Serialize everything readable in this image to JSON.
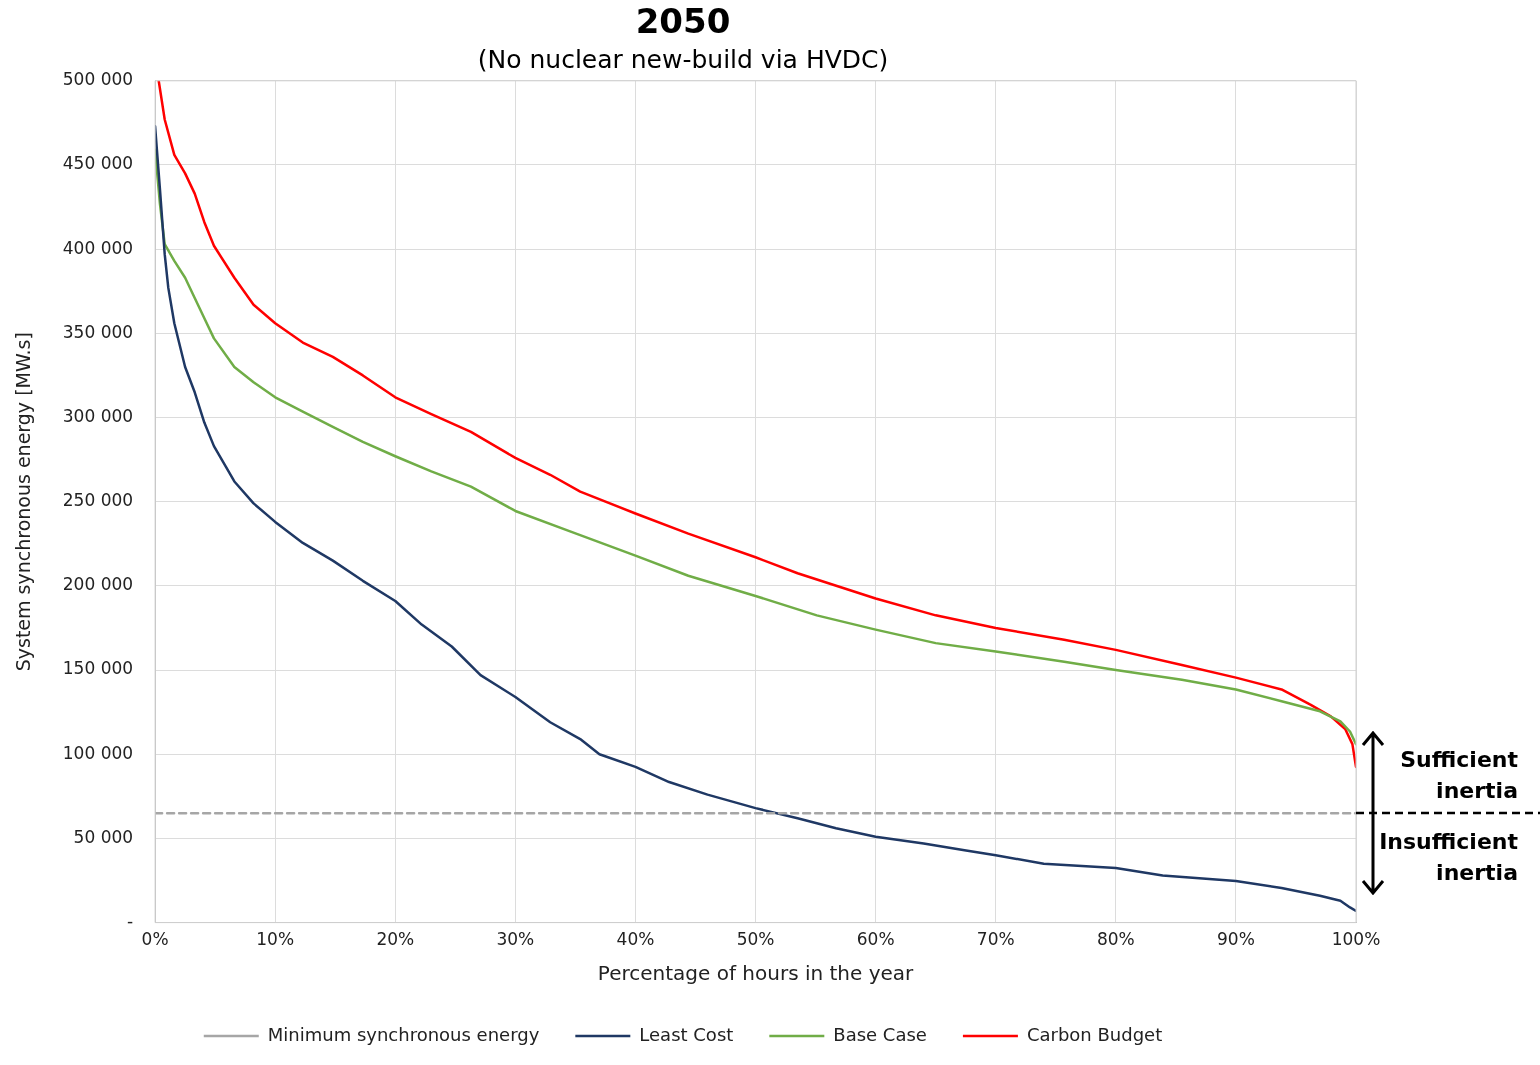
{
  "chart_data": {
    "type": "line",
    "title": "2050",
    "subtitle": "(No nuclear new-build via HVDC)",
    "xlabel": "Percentage of hours in the year",
    "ylabel": "System synchronous energy [MW.s]",
    "xlim": [
      0,
      100
    ],
    "xticks": [
      {
        "value": 0,
        "label": "0%"
      },
      {
        "value": 10,
        "label": "10%"
      },
      {
        "value": 20,
        "label": "20%"
      },
      {
        "value": 30,
        "label": "30%"
      },
      {
        "value": 40,
        "label": "40%"
      },
      {
        "value": 50,
        "label": "50%"
      },
      {
        "value": 60,
        "label": "60%"
      },
      {
        "value": 70,
        "label": "70%"
      },
      {
        "value": 80,
        "label": "80%"
      },
      {
        "value": 90,
        "label": "90%"
      },
      {
        "value": 100,
        "label": "100%"
      }
    ],
    "ylim": [
      0,
      500000
    ],
    "yticks": [
      {
        "value": 0,
        "label": "-"
      },
      {
        "value": 50000,
        "label": "50 000"
      },
      {
        "value": 100000,
        "label": "100 000"
      },
      {
        "value": 150000,
        "label": "150 000"
      },
      {
        "value": 200000,
        "label": "200 000"
      },
      {
        "value": 250000,
        "label": "250 000"
      },
      {
        "value": 300000,
        "label": "300 000"
      },
      {
        "value": 350000,
        "label": "350 000"
      },
      {
        "value": 400000,
        "label": "400 000"
      },
      {
        "value": 450000,
        "label": "450 000"
      },
      {
        "value": 500000,
        "label": "500 000"
      }
    ],
    "grid": true,
    "legend": "bottom",
    "marker": "none",
    "series": [
      {
        "name": "Minimum synchronous energy",
        "color": "#a6a6a6",
        "line_style": "dashed",
        "x": [
          0,
          100
        ],
        "values": [
          65000,
          65000
        ]
      },
      {
        "name": "Least Cost",
        "color": "#1f3864",
        "line_style": "solid",
        "x": [
          0,
          0.4,
          0.8,
          1.1,
          1.6,
          2.5,
          3.3,
          4.1,
          4.9,
          6.6,
          8.2,
          10,
          12.3,
          14.8,
          17.3,
          20,
          22.2,
          24.7,
          27.1,
          30,
          32.9,
          35.4,
          37,
          40,
          42.8,
          46,
          50,
          53.5,
          56.7,
          60,
          64,
          67.4,
          70,
          74,
          80,
          83.9,
          90,
          93.8,
          97,
          98.7,
          99.5,
          100
        ],
        "values": [
          473000,
          436000,
          397000,
          377000,
          356000,
          330000,
          315000,
          297000,
          283000,
          262000,
          249000,
          238000,
          225500,
          215000,
          203000,
          191000,
          177000,
          164000,
          147000,
          134000,
          119000,
          109000,
          100000,
          92500,
          83500,
          76000,
          68000,
          62000,
          56000,
          51000,
          47000,
          43000,
          40000,
          35000,
          32400,
          28000,
          24700,
          20600,
          16000,
          13000,
          9000,
          7000
        ]
      },
      {
        "name": "Base Case",
        "color": "#70ad47",
        "line_style": "solid",
        "x": [
          0,
          0.4,
          0.8,
          1.6,
          2.5,
          3.3,
          4.1,
          4.9,
          6.6,
          8.2,
          10,
          12.3,
          14.8,
          17.3,
          20,
          23,
          26.3,
          30,
          34.5,
          40,
          44.4,
          50,
          55.1,
          60,
          65,
          70,
          75.7,
          80,
          85.5,
          90,
          93.8,
          97,
          98.7,
          99.5,
          100
        ],
        "values": [
          459000,
          427000,
          403000,
          393000,
          383000,
          371000,
          359000,
          347000,
          330000,
          321000,
          312000,
          303500,
          294500,
          285500,
          277000,
          268000,
          259000,
          244500,
          232500,
          218000,
          206000,
          194000,
          182500,
          174000,
          166000,
          161000,
          155000,
          150000,
          144300,
          138500,
          131500,
          125500,
          119500,
          113500,
          106000
        ]
      },
      {
        "name": "Carbon Budget",
        "color": "#ff0000",
        "line_style": "solid",
        "x": [
          0.3,
          0.8,
          1.6,
          2.5,
          3.3,
          4.1,
          4.9,
          6.6,
          8.2,
          10,
          12.3,
          14.8,
          17.3,
          20,
          23,
          26.3,
          30,
          32.9,
          35.4,
          40,
          44.4,
          50,
          53.5,
          60,
          65,
          70,
          75.7,
          80,
          85.5,
          90,
          93.8,
          96.2,
          97.9,
          99.1,
          99.7,
          100
        ],
        "values": [
          500000,
          477000,
          456000,
          445000,
          433000,
          416000,
          402000,
          383000,
          367000,
          356000,
          344500,
          336000,
          325000,
          312000,
          302000,
          291500,
          276000,
          266000,
          256000,
          243000,
          231000,
          217000,
          207500,
          192500,
          182500,
          175000,
          168000,
          162000,
          153000,
          145500,
          138500,
          129500,
          122500,
          115000,
          106000,
          92500
        ]
      }
    ],
    "annotations": [
      "Sufficient inertia",
      "Insufficient inertia"
    ]
  }
}
